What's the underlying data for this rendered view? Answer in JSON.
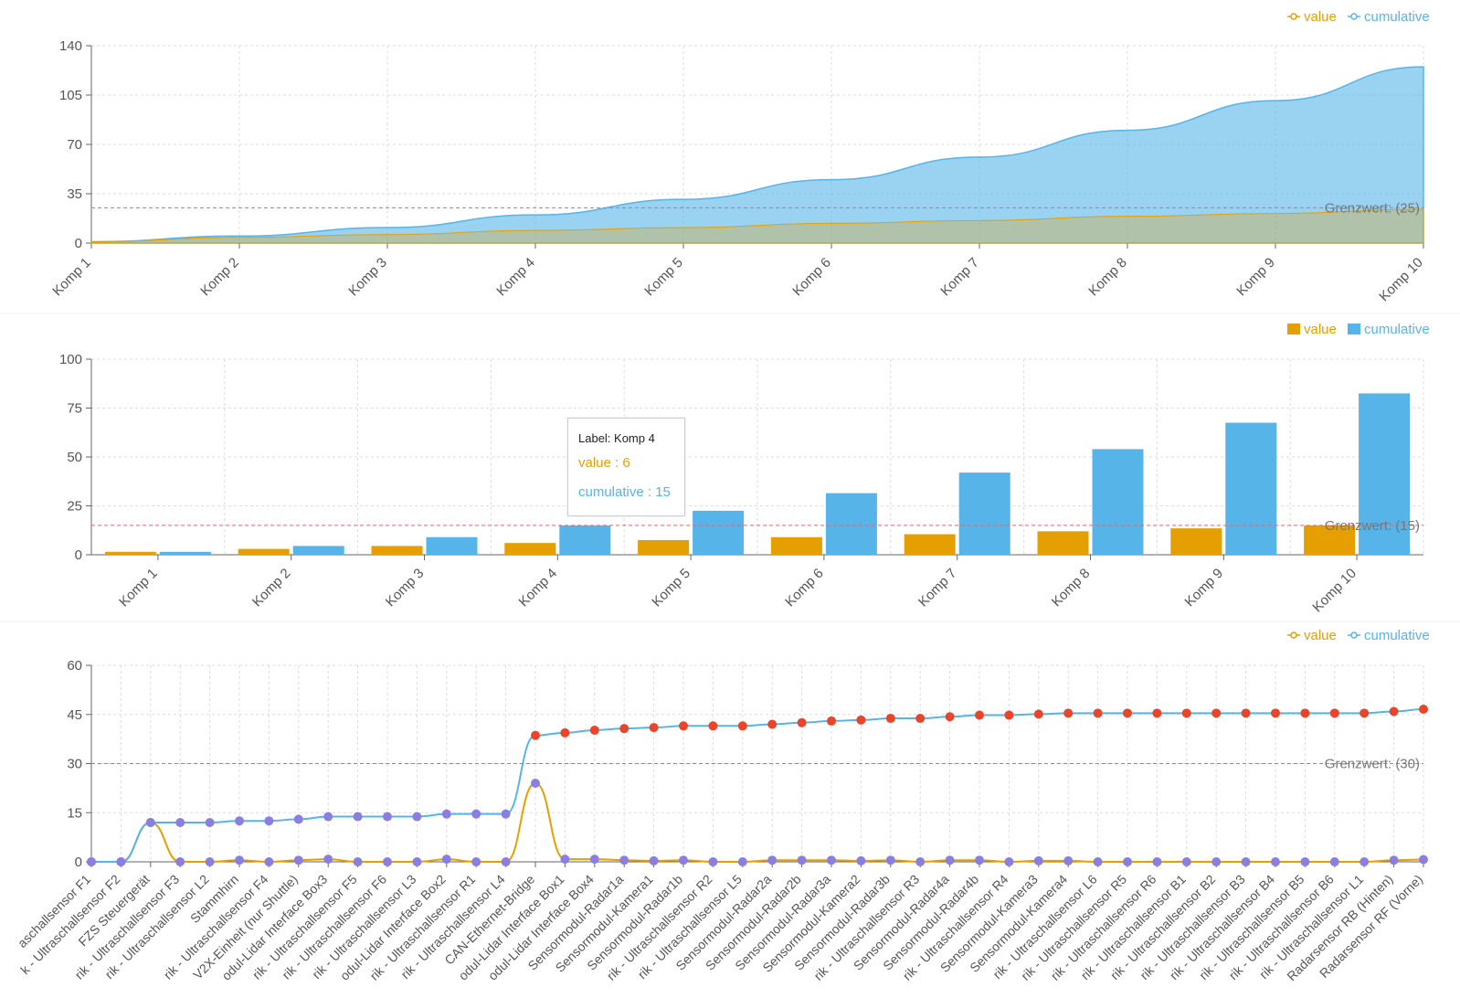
{
  "colors": {
    "value": "#e69f00",
    "cumulative": "#56b4e9",
    "threshold": "#e8646b",
    "dot_low": "#8a7fe0",
    "dot_high": "#e8452b"
  },
  "chart_data": [
    {
      "type": "area",
      "legend": [
        "value",
        "cumulative"
      ],
      "legend_position": "top-right",
      "categories": [
        "Komp 1",
        "Komp 2",
        "Komp 3",
        "Komp 4",
        "Komp 5",
        "Komp 6",
        "Komp 7",
        "Komp 8",
        "Komp 9",
        "Komp 10"
      ],
      "series": [
        {
          "name": "value",
          "values": [
            1,
            4,
            6,
            9,
            11,
            14,
            16,
            19,
            21,
            24
          ]
        },
        {
          "name": "cumulative",
          "values": [
            1,
            5,
            11,
            20,
            31,
            45,
            61,
            80,
            101,
            125
          ]
        }
      ],
      "yticks": [
        0,
        35,
        70,
        105,
        140
      ],
      "ylim": [
        0,
        140
      ],
      "grid": true,
      "threshold": {
        "value": 25,
        "label": "Grenzwert: (25)"
      }
    },
    {
      "type": "bar",
      "legend": [
        "value",
        "cumulative"
      ],
      "legend_position": "top-right",
      "categories": [
        "Komp 1",
        "Komp 2",
        "Komp 3",
        "Komp 4",
        "Komp 5",
        "Komp 6",
        "Komp 7",
        "Komp 8",
        "Komp 9",
        "Komp 10"
      ],
      "series": [
        {
          "name": "value",
          "values": [
            1.5,
            3,
            4.5,
            6,
            7.5,
            9,
            10.5,
            12,
            13.5,
            15
          ]
        },
        {
          "name": "cumulative",
          "values": [
            1.5,
            4.5,
            9,
            15,
            22.5,
            31.5,
            42,
            54,
            67.5,
            82.5
          ]
        }
      ],
      "yticks": [
        0,
        25,
        50,
        75,
        100
      ],
      "ylim": [
        0,
        100
      ],
      "grid": true,
      "threshold": {
        "value": 15,
        "label": "Grenzwert: (15)"
      },
      "tooltip": {
        "label": "Label: Komp 4",
        "value_text": "value : 6",
        "cumulative_text": "cumulative : 15"
      }
    },
    {
      "type": "line",
      "legend": [
        "value",
        "cumulative"
      ],
      "legend_position": "top-right",
      "categories": [
        "aschallsensor F1",
        "k - Ultraschallsensor F2",
        "FZS Steuergerät",
        "rik - Ultraschallsensor F3",
        "rik - Ultraschallsensor L2",
        "Stammhirn",
        "rik - Ultraschallsensor F4",
        "V2X-Einheit (nur Shuttle)",
        "odul-Lidar Interface Box3",
        "rik - Ultraschallsensor F5",
        "rik - Ultraschallsensor F6",
        "rik - Ultraschallsensor L3",
        "odul-Lidar Interface Box2",
        "rik - Ultraschallsensor R1",
        "rik - Ultraschallsensor L4",
        "CAN-Ethernet-Bridge",
        "odul-Lidar Interface Box1",
        "odul-Lidar Interface Box4",
        "Sensormodul-Radar1a",
        "Sensormodul-Kamera1",
        "Sensormodul-Radar1b",
        "rik - Ultraschallsensor R2",
        "rik - Ultraschallsensor L5",
        "Sensormodul-Radar2a",
        "Sensormodul-Radar2b",
        "Sensormodul-Radar3a",
        "Sensormodul-Kamera2",
        "Sensormodul-Radar3b",
        "rik - Ultraschallsensor R3",
        "Sensormodul-Radar4a",
        "Sensormodul-Radar4b",
        "rik - Ultraschallsensor R4",
        "Sensormodul-Kamera3",
        "Sensormodul-Kamera4",
        "rik - Ultraschallsensor L6",
        "rik - Ultraschallsensor R5",
        "rik - Ultraschallsensor R6",
        "rik - Ultraschallsensor B1",
        "rik - Ultraschallsensor B2",
        "rik - Ultraschallsensor B3",
        "rik - Ultraschallsensor B4",
        "rik - Ultraschallsensor B5",
        "rik - Ultraschallsensor B6",
        "rik - Ultraschallsensor L1",
        "Radarsensor RB (Hinten)",
        "Radarsensor RF (Vorne)"
      ],
      "series": [
        {
          "name": "value",
          "values": [
            0,
            0,
            12,
            0,
            0,
            0.5,
            0,
            0.5,
            0.8,
            0,
            0,
            0,
            0.8,
            0,
            0,
            24,
            0.8,
            0.8,
            0.5,
            0.3,
            0.5,
            0,
            0,
            0.5,
            0.5,
            0.5,
            0.3,
            0.5,
            0,
            0.5,
            0.5,
            0,
            0.3,
            0.3,
            0,
            0,
            0,
            0,
            0,
            0,
            0,
            0,
            0,
            0,
            0.5,
            0.7
          ]
        },
        {
          "name": "cumulative",
          "values": [
            0,
            0,
            12,
            12,
            12,
            12.5,
            12.5,
            13,
            13.8,
            13.8,
            13.8,
            13.8,
            14.6,
            14.6,
            14.6,
            38.6,
            39.4,
            40.2,
            40.7,
            41,
            41.5,
            41.5,
            41.5,
            42,
            42.5,
            43,
            43.3,
            43.8,
            43.8,
            44.3,
            44.8,
            44.8,
            45.1,
            45.4,
            45.4,
            45.4,
            45.4,
            45.4,
            45.4,
            45.4,
            45.4,
            45.4,
            45.4,
            45.4,
            45.9,
            46.6
          ]
        }
      ],
      "yticks": [
        0,
        15,
        30,
        45,
        60
      ],
      "ylim": [
        0,
        60
      ],
      "grid": true,
      "threshold": {
        "value": 30,
        "label": "Grenzwert: (30)"
      }
    }
  ]
}
